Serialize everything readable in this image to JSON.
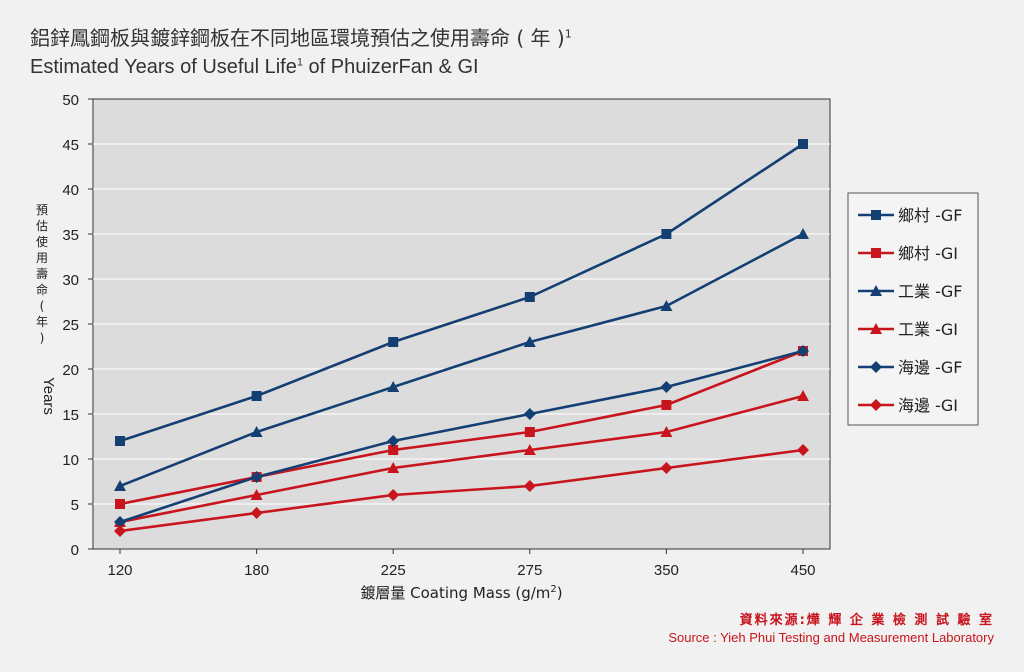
{
  "title": {
    "zh": "鋁鋅鳳鋼板與鍍鋅鋼板在不同地區環境預估之使用壽命 ( 年 )",
    "zh_sup": "1",
    "en_main": "Estimated Years of Useful Life",
    "en_sup": "1",
    "en_rest": " of PhuizerFan & GI"
  },
  "source": {
    "zh": "資料來源:燁 輝 企 業 檢 測 試 驗 室",
    "en": "Source :  Yieh Phui Testing and Measurement Laboratory"
  },
  "colors": {
    "gf": "#143f73",
    "gi": "#c8141d",
    "plot_bg": "#dcdcdc",
    "grid": "#ffffff"
  },
  "chart_data": {
    "type": "line",
    "xlabel_prefix": "鍍層量 Coating Mass (g/m",
    "xlabel_sup": "2",
    "xlabel_suffix": ")",
    "ylabel_zh": [
      "預",
      "估",
      "使",
      "用",
      "壽",
      "命",
      "(",
      "年",
      ")"
    ],
    "ylabel_en": "Years",
    "categories": [
      "120",
      "180",
      "225",
      "275",
      "350",
      "450"
    ],
    "ylim": [
      0,
      50
    ],
    "yticks": [
      0,
      5,
      10,
      15,
      20,
      25,
      30,
      35,
      40,
      45,
      50
    ],
    "grid": true,
    "legend_position": "right",
    "series": [
      {
        "name": "鄉村 -GF",
        "color": "#143f73",
        "marker": "square",
        "values": [
          12,
          17,
          23,
          28,
          35,
          45
        ]
      },
      {
        "name": "鄉村 -GI",
        "color": "#c8141d",
        "marker": "square",
        "values": [
          5,
          8,
          11,
          13,
          16,
          22
        ]
      },
      {
        "name": "工業 -GF",
        "color": "#143f73",
        "marker": "triangle",
        "values": [
          7,
          13,
          18,
          23,
          27,
          35
        ]
      },
      {
        "name": "工業 -GI",
        "color": "#c8141d",
        "marker": "triangle",
        "values": [
          3,
          6,
          9,
          11,
          13,
          17
        ]
      },
      {
        "name": "海邊 -GF",
        "color": "#143f73",
        "marker": "diamond",
        "values": [
          3,
          8,
          12,
          15,
          18,
          22
        ]
      },
      {
        "name": "海邊 -GI",
        "color": "#c8141d",
        "marker": "diamond",
        "values": [
          2,
          4,
          6,
          7,
          9,
          11
        ]
      }
    ]
  }
}
